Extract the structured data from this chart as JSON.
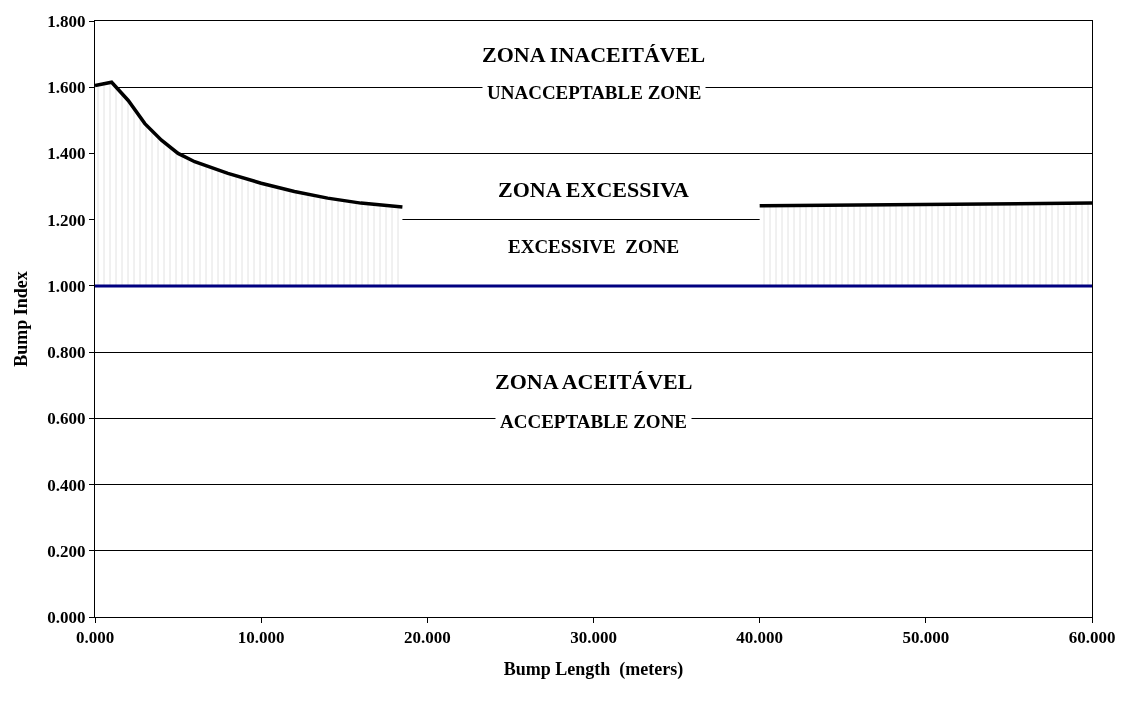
{
  "chart_data": {
    "type": "line",
    "xlabel": "Bump Length  (meters)",
    "ylabel": "Bump Index",
    "x": [
      0,
      1,
      2,
      3,
      4,
      5,
      6,
      8,
      10,
      12,
      14,
      16,
      18.5,
      30,
      40,
      60
    ],
    "series": [
      {
        "color": "#000000",
        "values": [
          1.605,
          1.615,
          1.56,
          1.49,
          1.44,
          1.4,
          1.375,
          1.34,
          1.31,
          1.285,
          1.265,
          1.25,
          1.238,
          null,
          1.242,
          1.25
        ],
        "lower": [
          1.0,
          1.0,
          1.0,
          1.0,
          1.0,
          1.0,
          1.0,
          1.0,
          1.0,
          1.0,
          1.0,
          1.0,
          1.0,
          null,
          1.0,
          1.0
        ],
        "upper": [
          1.605,
          1.615,
          1.56,
          1.49,
          1.44,
          1.4,
          1.375,
          1.34,
          1.31,
          1.285,
          1.265,
          1.25,
          1.238,
          null,
          1.242,
          1.25
        ]
      }
    ],
    "ref_lines": [
      {
        "axis": "y",
        "value": 1.0,
        "color": "#000080"
      }
    ],
    "annotations": [
      "ZONA INACEITÁVEL",
      "UNACCEPTABLE ZONE",
      "ZONA EXCESSIVA",
      "EXCESSIVE  ZONE",
      "ZONA ACEITÁVEL",
      "ACCEPTABLE ZONE"
    ],
    "xlim": [
      0,
      60
    ],
    "xticks": [
      {
        "value": 0,
        "label": "0.000"
      },
      {
        "value": 10,
        "label": "10.000"
      },
      {
        "value": 20,
        "label": "20.000"
      },
      {
        "value": 30,
        "label": "30.000"
      },
      {
        "value": 40,
        "label": "40.000"
      },
      {
        "value": 50,
        "label": "50.000"
      },
      {
        "value": 60,
        "label": "60.000"
      }
    ],
    "ylim": [
      0,
      1.8
    ],
    "yticks": [
      {
        "value": 0,
        "label": "0.000"
      },
      {
        "value": 0.2,
        "label": "0.200"
      },
      {
        "value": 0.4,
        "label": "0.400"
      },
      {
        "value": 0.6,
        "label": "0.600"
      },
      {
        "value": 0.8,
        "label": "0.800"
      },
      {
        "value": 1.0,
        "label": "1.000"
      },
      {
        "value": 1.2,
        "label": "1.200"
      },
      {
        "value": 1.4,
        "label": "1.400"
      },
      {
        "value": 1.6,
        "label": "1.600"
      },
      {
        "value": 1.8,
        "label": "1.800"
      }
    ],
    "grid": "y"
  }
}
